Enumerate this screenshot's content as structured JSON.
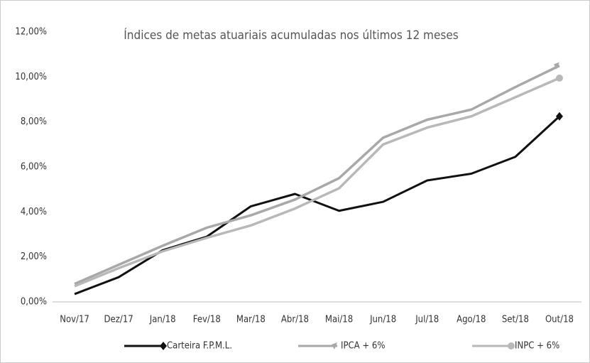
{
  "chart_data": {
    "type": "line",
    "title": "Índices de metas atuariais acumuladas nos últimos 12 meses",
    "categories": [
      "Nov/17",
      "Dez/17",
      "Jan/18",
      "Fev/18",
      "Mar/18",
      "Abr/18",
      "Mai/18",
      "Jun/18",
      "Jul/18",
      "Ago/18",
      "Set/18",
      "Out/18"
    ],
    "series": [
      {
        "name": "Carteira F.P.M.L.",
        "color": "#111111",
        "values": [
          0.35,
          1.1,
          2.3,
          2.9,
          4.25,
          4.8,
          4.05,
          4.45,
          5.4,
          5.7,
          6.45,
          8.25
        ]
      },
      {
        "name": "IPCA + 6%",
        "color": "#a8a8a8",
        "values": [
          0.8,
          1.65,
          2.5,
          3.3,
          3.85,
          4.55,
          5.5,
          7.3,
          8.1,
          8.55,
          9.55,
          10.5
        ]
      },
      {
        "name": "INPC + 6%",
        "color": "#b8b8b8",
        "values": [
          0.7,
          1.5,
          2.25,
          2.85,
          3.4,
          4.15,
          5.05,
          7.0,
          7.75,
          8.25,
          9.1,
          9.95
        ]
      }
    ],
    "ylim": [
      0,
      12
    ],
    "yticks": [
      {
        "value": 0,
        "label": "0,00%"
      },
      {
        "value": 2,
        "label": "2,00%"
      },
      {
        "value": 4,
        "label": "4,00%"
      },
      {
        "value": 6,
        "label": "6,00%"
      },
      {
        "value": 8,
        "label": "8,00%"
      },
      {
        "value": 10,
        "label": "10,00%"
      },
      {
        "value": 12,
        "label": "12,00%"
      }
    ],
    "grid": false,
    "legend": "bottom"
  }
}
